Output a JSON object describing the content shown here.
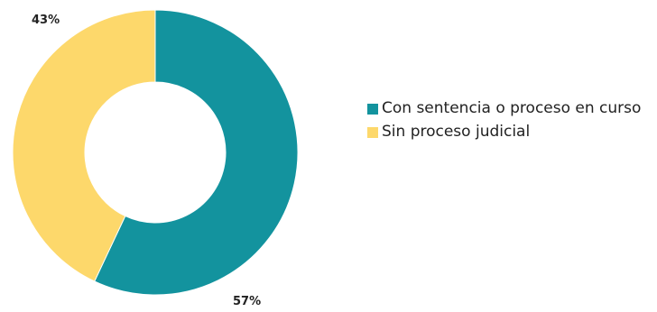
{
  "chart_data": {
    "type": "pie",
    "donut": true,
    "categories": [
      "Con sentencia o proceso en curso",
      "Sin proceso judicial"
    ],
    "values": [
      57,
      43
    ],
    "value_labels": [
      "57%",
      "43%"
    ],
    "colors": [
      "#13939e",
      "#fdd86b"
    ],
    "legend_position": "right",
    "title": ""
  }
}
